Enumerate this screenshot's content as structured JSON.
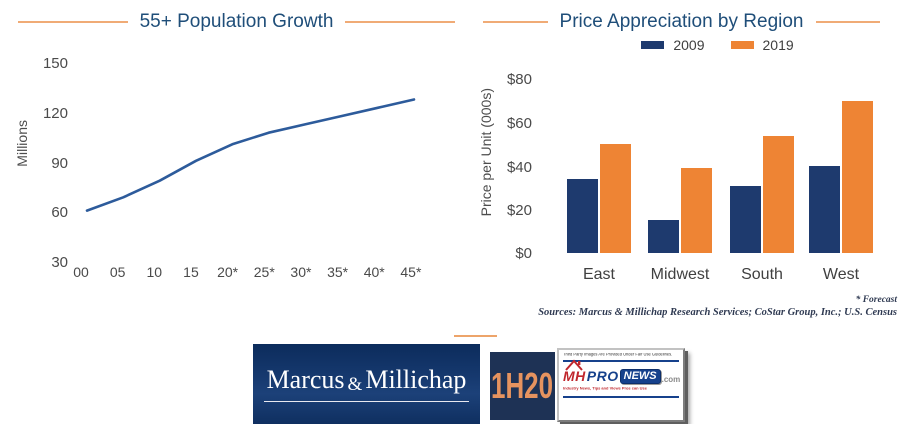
{
  "left_chart": {
    "title": "55+ Population Growth",
    "ylabel": "Millions",
    "y_ticks": [
      "150",
      "120",
      "90",
      "60",
      "30"
    ],
    "x_labels": [
      "00",
      "05",
      "10",
      "15",
      "20*",
      "25*",
      "30*",
      "35*",
      "40*",
      "45*"
    ]
  },
  "right_chart": {
    "title": "Price Appreciation by Region",
    "ylabel": "Price per Unit (000s)",
    "y_ticks": [
      "$80",
      "$60",
      "$40",
      "$20",
      "$0"
    ],
    "categories": [
      "East",
      "Midwest",
      "South",
      "West"
    ],
    "legend": [
      {
        "label": "2009",
        "color": "#1e3a6e"
      },
      {
        "label": "2019",
        "color": "#ee8434"
      }
    ]
  },
  "chart_data": [
    {
      "type": "line",
      "title": "55+ Population Growth",
      "x": [
        "00",
        "05",
        "10",
        "15",
        "20*",
        "25*",
        "30*",
        "35*",
        "40*",
        "45*"
      ],
      "values": [
        61,
        69,
        79,
        91,
        101,
        108,
        113,
        118,
        123,
        128
      ],
      "xlabel": "",
      "ylabel": "Millions",
      "ylim": [
        30,
        150
      ],
      "y_ticks": [
        30,
        60,
        90,
        120,
        150
      ],
      "grid": false,
      "line_color": "#2d5b9b"
    },
    {
      "type": "bar",
      "title": "Price Appreciation by Region",
      "categories": [
        "East",
        "Midwest",
        "South",
        "West"
      ],
      "series": [
        {
          "name": "2009",
          "color": "#1e3a6e",
          "values": [
            34,
            15,
            31,
            40
          ]
        },
        {
          "name": "2019",
          "color": "#ee8434",
          "values": [
            50,
            39,
            54,
            70
          ]
        }
      ],
      "xlabel": "",
      "ylabel": "Price per Unit (000s)",
      "ylim": [
        0,
        80
      ],
      "y_ticks": [
        0,
        20,
        40,
        60,
        80
      ],
      "grid": false,
      "legend_position": "top"
    }
  ],
  "footnotes": {
    "forecast": "* Forecast",
    "sources": "Sources: Marcus & Millichap Research Services; CoStar Group, Inc.; U.S. Census"
  },
  "logos": {
    "marcus_millichap": {
      "part1": "Marcus",
      "amp": "&",
      "part2": "Millichap"
    },
    "period_badge": {
      "text": "1H20"
    },
    "mhpronews": {
      "top_note": "Third Party Images Are Provided Under Fair Use Guidelines.",
      "mh": "MH",
      "pro": "PRO",
      "news": "NEWS",
      "com": ".com",
      "tagline": "Industry News, Tips and Views Pros can Use"
    }
  },
  "colors": {
    "title_blue": "#1f4e79",
    "line_blue": "#2d5b9b",
    "bar_navy": "#1e3a6e",
    "bar_orange": "#ee8434",
    "divider_orange": "#f0ab76",
    "axis_text": "#4a4a4a",
    "footnote_text": "#2f3a52",
    "mm_navy": "#12366e",
    "badge_navy": "#1e3255",
    "badge_orange": "#e6935f",
    "mhp_red": "#c0272d",
    "mhp_blue": "#16418c"
  }
}
